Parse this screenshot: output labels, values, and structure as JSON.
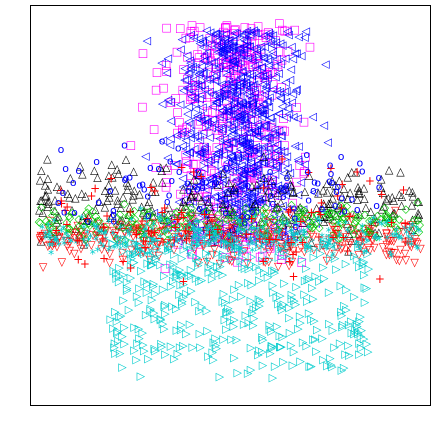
{
  "chart_data": {
    "type": "scatter",
    "title": "",
    "xlabel": "",
    "ylabel": "",
    "xlim": [
      0,
      100
    ],
    "ylim": [
      0,
      100
    ],
    "grid": false,
    "legend": "none",
    "axes_ticks": "none",
    "series": [
      {
        "marker": "square",
        "color": "#ff00ff",
        "count": 420,
        "region": "upper",
        "x": [
          2,
          98
        ],
        "y": [
          34,
          96
        ]
      },
      {
        "marker": "triangle-left",
        "color": "#0000ff",
        "count": 780,
        "region": "upper-center",
        "x": [
          8,
          96
        ],
        "y": [
          40,
          94
        ]
      },
      {
        "marker": "triangle-up",
        "color": "#000000",
        "count": 260,
        "region": "mid",
        "x": [
          2,
          98
        ],
        "y": [
          22,
          80
        ]
      },
      {
        "marker": "triangle-down",
        "color": "#ff0000",
        "count": 300,
        "region": "mid",
        "x": [
          2,
          98
        ],
        "y": [
          25,
          58
        ]
      },
      {
        "marker": "diamond",
        "color": "#00cc00",
        "count": 230,
        "region": "mid",
        "x": [
          2,
          98
        ],
        "y": [
          34,
          58
        ]
      },
      {
        "marker": "asterisk",
        "color": "#00cccc",
        "count": 260,
        "region": "mid-left",
        "x": [
          2,
          98
        ],
        "y": [
          28,
          56
        ]
      },
      {
        "marker": "triangle-right",
        "color": "#00cccc",
        "count": 430,
        "region": "lower",
        "x": [
          20,
          85
        ],
        "y": [
          5,
          42
        ]
      },
      {
        "marker": "cross",
        "color": "#ff0000",
        "count": 90,
        "region": "scattered",
        "x": [
          5,
          95
        ],
        "y": [
          8,
          85
        ]
      },
      {
        "marker": "circle",
        "color": "#0000ff",
        "count": 90,
        "region": "scattered",
        "x": [
          5,
          95
        ],
        "y": [
          20,
          90
        ]
      }
    ]
  }
}
